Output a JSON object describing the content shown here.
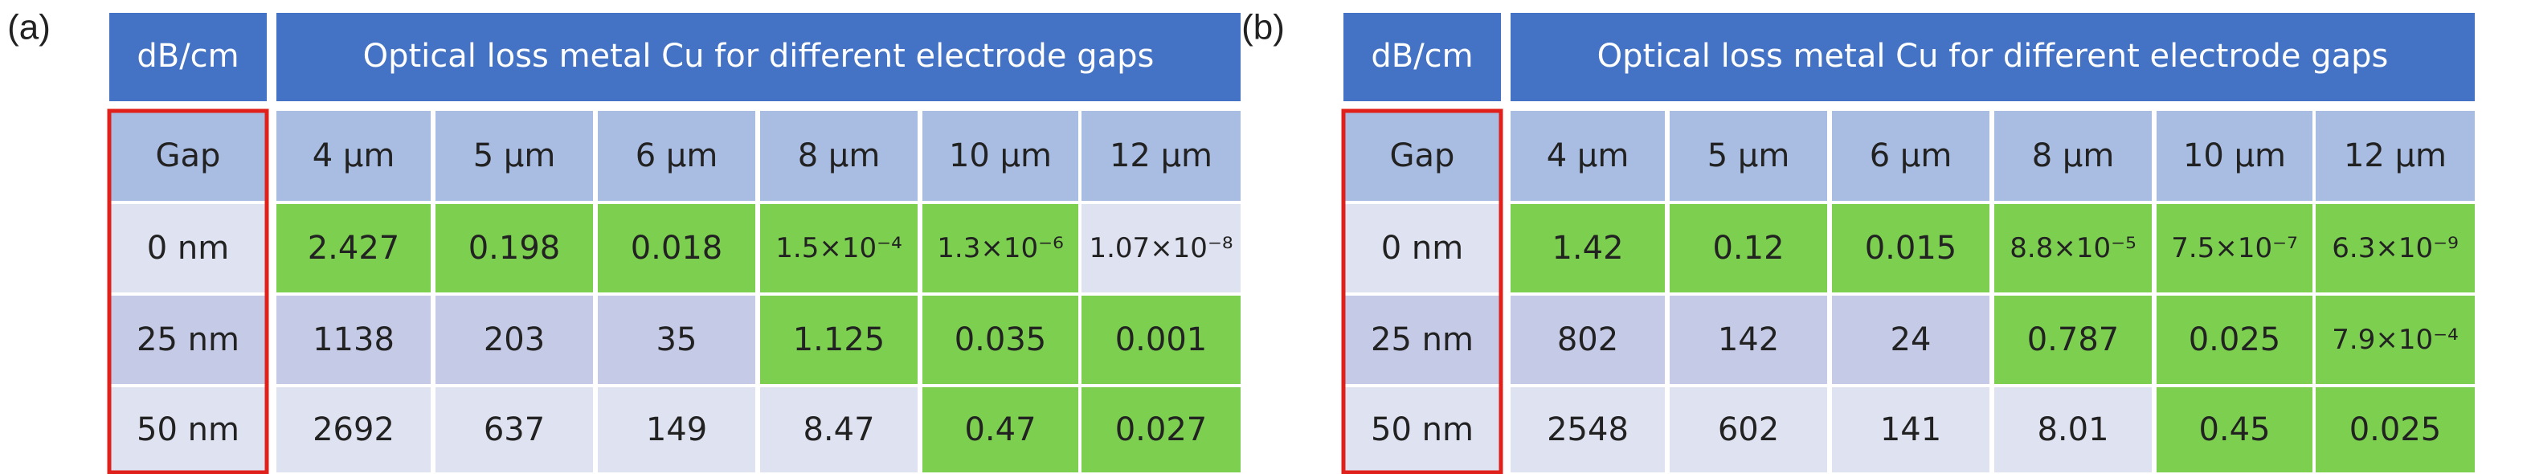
{
  "panels": [
    {
      "label": "(a)",
      "table": {
        "corner": "dB/cm",
        "title": "Optical loss metal Cu for different electrode gaps",
        "header": [
          "Gap",
          "4 µm",
          "5 µm",
          "6 µm",
          "8 µm",
          "10 µm",
          "12 µm"
        ],
        "rows": [
          [
            "0 nm",
            "2.427",
            "0.198",
            "0.018",
            "1.5×10⁻⁴",
            "1.3×10⁻⁶",
            "1.07×10⁻⁸"
          ],
          [
            "25 nm",
            "1138",
            "203",
            "35",
            "1.125",
            "0.035",
            "0.001"
          ],
          [
            "50 nm",
            "2692",
            "637",
            "149",
            "8.47",
            "0.47",
            "0.027"
          ]
        ]
      }
    },
    {
      "label": "(b)",
      "table": {
        "corner": "dB/cm",
        "title": "Optical loss metal Cu for different electrode gaps",
        "header": [
          "Gap",
          "4 µm",
          "5 µm",
          "6 µm",
          "8 µm",
          "10 µm",
          "12 µm"
        ],
        "rows": [
          [
            "0 nm",
            "1.42",
            "0.12",
            "0.015",
            "8.8×10⁻⁵",
            "7.5×10⁻⁷",
            "6.3×10⁻⁹"
          ],
          [
            "25 nm",
            "802",
            "142",
            "24",
            "0.787",
            "0.025",
            "7.9×10⁻⁴"
          ],
          [
            "50 nm",
            "2548",
            "602",
            "141",
            "8.01",
            "0.45",
            "0.025"
          ]
        ]
      }
    }
  ]
}
